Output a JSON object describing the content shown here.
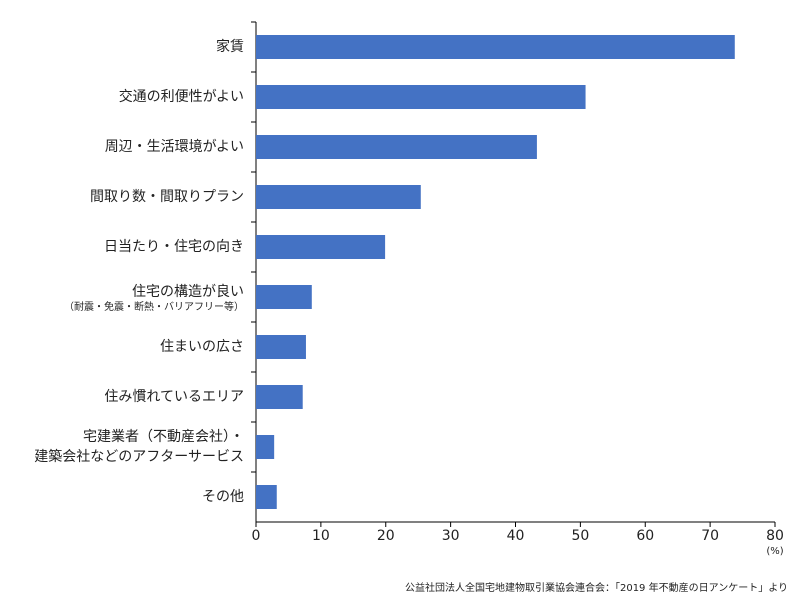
{
  "chart_data": {
    "type": "barh",
    "categories": [
      [
        "家賃"
      ],
      [
        "交通の利便性がよい"
      ],
      [
        "周辺・生活環境がよい"
      ],
      [
        "間取り数・間取りプラン"
      ],
      [
        "日当たり・住宅の向き"
      ],
      [
        "住宅の構造が良い",
        "（耐震・免震・断熱・バリアフリー等）"
      ],
      [
        "住まいの広さ"
      ],
      [
        "住み慣れているエリア"
      ],
      [
        "宅建業者（不動産会社）・",
        "建築会社などのアフターサービス"
      ],
      [
        "その他"
      ]
    ],
    "values": [
      73.8,
      50.8,
      43.3,
      25.4,
      19.9,
      8.6,
      7.7,
      7.2,
      2.8,
      3.2
    ],
    "color": "#4472c4",
    "xlim": [
      0,
      80
    ],
    "xticks": [
      0,
      10,
      20,
      30,
      40,
      50,
      60,
      70,
      80
    ],
    "x_unit": "(%)",
    "source": "公益社団法人全国宅地建物取引業協会連合会：「2019 年不動産の日アンケート」より",
    "grid": false
  }
}
